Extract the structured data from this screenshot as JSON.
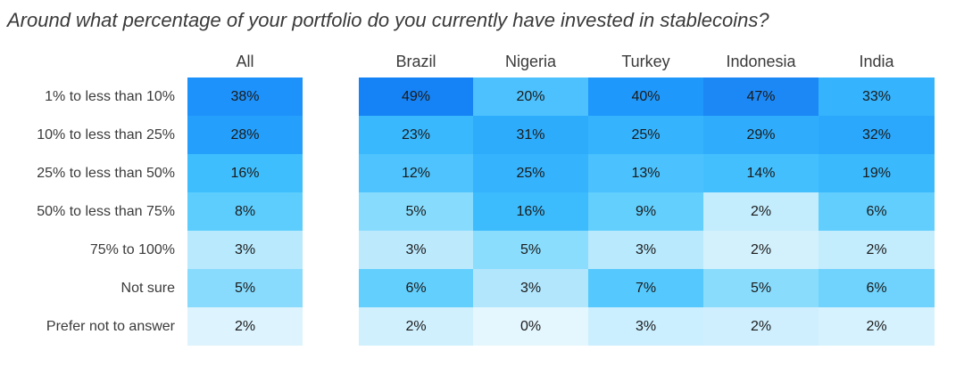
{
  "title": "Around what percentage of your portfolio do you currently have invested in stablecoins?",
  "chart_data": {
    "type": "heatmap",
    "title": "Around what percentage of your portfolio do you currently have invested in stablecoins?",
    "columns": [
      "All",
      "Brazil",
      "Nigeria",
      "Turkey",
      "Indonesia",
      "India"
    ],
    "rows": [
      "1% to less than 10%",
      "10% to less than 25%",
      "25% to less than 50%",
      "50% to less than 75%",
      "75% to 100%",
      "Not sure",
      "Prefer not to answer"
    ],
    "values": [
      [
        38,
        49,
        20,
        40,
        47,
        33
      ],
      [
        28,
        23,
        31,
        25,
        29,
        32
      ],
      [
        16,
        12,
        25,
        13,
        14,
        19
      ],
      [
        8,
        5,
        16,
        9,
        2,
        6
      ],
      [
        3,
        3,
        5,
        3,
        2,
        2
      ],
      [
        5,
        6,
        3,
        7,
        5,
        6
      ],
      [
        2,
        2,
        0,
        3,
        2,
        2
      ]
    ],
    "labels": [
      [
        "38%",
        "49%",
        "20%",
        "40%",
        "47%",
        "33%"
      ],
      [
        "28%",
        "23%",
        "31%",
        "25%",
        "29%",
        "32%"
      ],
      [
        "16%",
        "12%",
        "25%",
        "13%",
        "14%",
        "19%"
      ],
      [
        "8%",
        "5%",
        "16%",
        "9%",
        "2%",
        "6%"
      ],
      [
        "3%",
        "3%",
        "5%",
        "3%",
        "2%",
        "2%"
      ],
      [
        "5%",
        "6%",
        "3%",
        "7%",
        "5%",
        "6%"
      ],
      [
        "2%",
        "2%",
        "0%",
        "3%",
        "2%",
        "2%"
      ]
    ],
    "cell_colors": [
      [
        "#1e92fb",
        "#1583f5",
        "#4cc1fd",
        "#1f98fb",
        "#1c88f6",
        "#35b3fd"
      ],
      [
        "#259ffc",
        "#3ab8fd",
        "#2eacfc",
        "#35b3fd",
        "#2fadfc",
        "#2ba8fc"
      ],
      [
        "#3fbefd",
        "#4fc3fd",
        "#35b3fd",
        "#4bc1fd",
        "#44bffd",
        "#3ab9fd"
      ],
      [
        "#5dcdfd",
        "#87dcfd",
        "#3dbcfd",
        "#63cffd",
        "#c3ecfd",
        "#62cefd"
      ],
      [
        "#b8e9fd",
        "#bde9fd",
        "#8bddfd",
        "#b9e9fd",
        "#d3f1fd",
        "#c3ecfd"
      ],
      [
        "#88dbfd",
        "#63cffd",
        "#b2e6fd",
        "#55c9fd",
        "#8adcfd",
        "#6fd3fd"
      ],
      [
        "#ddf4fe",
        "#d1f0fe",
        "#e5f7fe",
        "#ccefff",
        "#cfeffe",
        "#d6f2fe"
      ]
    ]
  }
}
